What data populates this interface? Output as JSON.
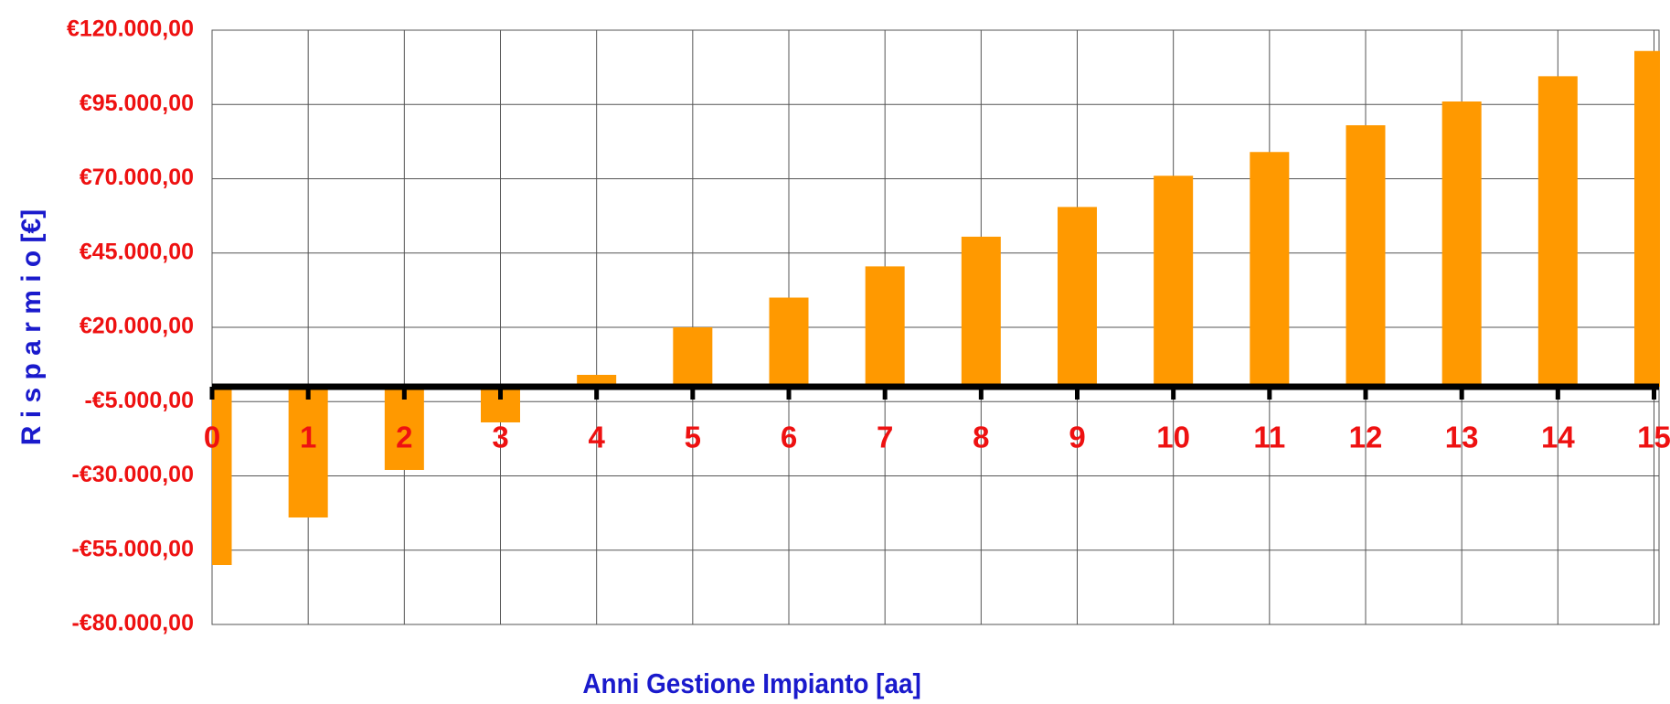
{
  "chart_data": {
    "type": "bar",
    "x_label": "Anni Gestione Impianto [aa]",
    "y_label": "R i s p a r m i o  [€]",
    "categories": [
      "0",
      "1",
      "2",
      "3",
      "4",
      "5",
      "6",
      "7",
      "8",
      "9",
      "10",
      "11",
      "12",
      "13",
      "14",
      "15"
    ],
    "values": [
      -60000,
      -44000,
      -28000,
      -12000,
      4000,
      20000,
      30000,
      40500,
      50500,
      60500,
      71000,
      79000,
      88000,
      96000,
      104500,
      113000
    ],
    "color": "#ff9900",
    "ylim": [
      -80000,
      120000
    ],
    "yticks": [
      {
        "value": -80000,
        "label": "-€80.000,00"
      },
      {
        "value": -55000,
        "label": "-€55.000,00"
      },
      {
        "value": -30000,
        "label": "-€30.000,00"
      },
      {
        "value": -5000,
        "label": "-€5.000,00"
      },
      {
        "value": 20000,
        "label": "€20.000,00"
      },
      {
        "value": 45000,
        "label": "€45.000,00"
      },
      {
        "value": 70000,
        "label": "€70.000,00"
      },
      {
        "value": 95000,
        "label": "€95.000,00"
      },
      {
        "value": 120000,
        "label": "€120.000,00"
      }
    ],
    "grid": true
  }
}
